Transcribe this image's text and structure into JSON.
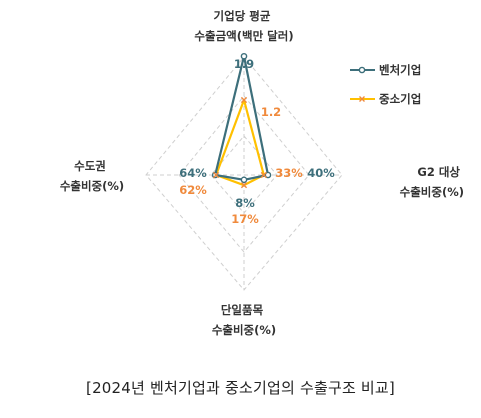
{
  "chart_data": {
    "type": "radar",
    "axes": [
      {
        "label_lines": [
          "기업당 평균",
          "수출금액(백만 달러)"
        ],
        "label_pos": "top"
      },
      {
        "label_lines": [
          "G2 대상",
          "수출비중(%)"
        ],
        "label_pos": "right"
      },
      {
        "label_lines": [
          "단일품목",
          "수출비중(%)"
        ],
        "label_pos": "bottom"
      },
      {
        "label_lines": [
          "수도권",
          "수출비중(%)"
        ],
        "label_pos": "left"
      }
    ],
    "series": [
      {
        "name": "벤처기업",
        "color": "#3d6f7b",
        "marker": "circle",
        "values": [
          1.9,
          40,
          8,
          64
        ],
        "labels": [
          "1.9",
          "40%",
          "8%",
          "64%"
        ]
      },
      {
        "name": "중소기업",
        "color": "#ffc000",
        "label_color": "#f08a3c",
        "marker": "cross",
        "values": [
          1.2,
          33,
          17,
          62
        ],
        "labels": [
          "1.2",
          "33%",
          "17%",
          "62%"
        ]
      }
    ],
    "grid": true,
    "grid_style": "dashed diamonds",
    "legend_position": "top-right"
  },
  "caption": "[2024년 벤처기업과 중소기업의 수출구조 비교]"
}
